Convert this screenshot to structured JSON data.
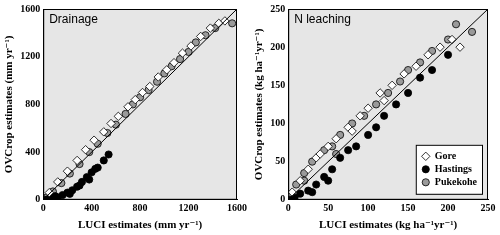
{
  "chart_data": [
    {
      "type": "scatter",
      "title": "Drainage",
      "xlabel": "LUCI estimates (mm yr⁻¹)",
      "ylabel": "OVCrop estimates (mm yr⁻¹)",
      "xlim": [
        0,
        1600
      ],
      "ylim": [
        0,
        1600
      ],
      "xticks": [
        0,
        400,
        800,
        1200,
        1600
      ],
      "yticks": [
        0,
        400,
        800,
        1200,
        1600
      ],
      "grid": false,
      "line_1to1": {
        "x": [
          0,
          1600
        ],
        "y": [
          0,
          1600
        ]
      },
      "series": [
        {
          "name": "Gore",
          "color": "#ffffff",
          "marker": "diamond",
          "x": [
            50,
            120,
            200,
            280,
            350,
            420,
            500,
            560,
            620,
            700,
            760,
            820,
            880,
            950,
            1020,
            1080,
            1150,
            1220,
            1300,
            1380,
            1450,
            1500
          ],
          "y": [
            60,
            150,
            240,
            330,
            420,
            500,
            570,
            640,
            700,
            780,
            840,
            900,
            950,
            1030,
            1090,
            1150,
            1230,
            1290,
            1370,
            1440,
            1480,
            1500
          ]
        },
        {
          "name": "Hastings",
          "color": "#000000",
          "marker": "circle",
          "x": [
            10,
            40,
            80,
            120,
            160,
            200,
            240,
            280,
            320,
            360,
            400,
            450,
            500,
            540,
            100,
            60,
            220,
            300,
            380,
            430
          ],
          "y": [
            0,
            5,
            10,
            20,
            40,
            60,
            80,
            110,
            150,
            190,
            230,
            270,
            330,
            380,
            30,
            15,
            50,
            120,
            170,
            260
          ]
        },
        {
          "name": "Pukekohe",
          "color": "#9a9a9a",
          "marker": "circle",
          "x": [
            30,
            80,
            150,
            220,
            300,
            380,
            450,
            530,
            600,
            680,
            740,
            800,
            870,
            940,
            1000,
            1060,
            1130,
            1200,
            1260,
            1340,
            1420,
            1560
          ],
          "y": [
            20,
            70,
            140,
            220,
            300,
            400,
            470,
            560,
            630,
            720,
            800,
            860,
            920,
            990,
            1060,
            1120,
            1180,
            1240,
            1320,
            1380,
            1440,
            1480
          ]
        }
      ]
    },
    {
      "type": "scatter",
      "title": "N leaching",
      "xlabel": "LUCI estimates (kg ha⁻¹yr⁻¹)",
      "ylabel": "OVCrop estimates (kg ha⁻¹yr⁻¹)",
      "xlim": [
        0,
        250
      ],
      "ylim": [
        0,
        250
      ],
      "xticks": [
        0,
        50,
        100,
        150,
        200,
        250
      ],
      "yticks": [
        0,
        50,
        100,
        150,
        200,
        250
      ],
      "grid": false,
      "legend": "lower right",
      "line_1to1": {
        "x": [
          0,
          250
        ],
        "y": [
          0,
          250
        ]
      },
      "series": [
        {
          "name": "Gore",
          "color": "#ffffff",
          "marker": "diamond",
          "x": [
            5,
            15,
            25,
            35,
            50,
            60,
            75,
            90,
            100,
            115,
            130,
            145,
            160,
            175,
            190,
            205,
            215,
            120,
            80,
            40
          ],
          "y": [
            10,
            25,
            40,
            55,
            70,
            80,
            95,
            110,
            120,
            140,
            150,
            165,
            175,
            190,
            200,
            210,
            200,
            130,
            90,
            60
          ]
        },
        {
          "name": "Hastings",
          "color": "#000000",
          "marker": "circle",
          "x": [
            2,
            8,
            15,
            25,
            35,
            45,
            55,
            65,
            75,
            85,
            100,
            110,
            120,
            135,
            150,
            165,
            180,
            200,
            30,
            50
          ],
          "y": [
            0,
            3,
            8,
            12,
            20,
            30,
            40,
            55,
            65,
            70,
            85,
            95,
            110,
            125,
            140,
            160,
            170,
            190,
            10,
            25
          ]
        },
        {
          "name": "Pukekohe",
          "color": "#9a9a9a",
          "marker": "circle",
          "x": [
            3,
            10,
            20,
            30,
            45,
            55,
            65,
            80,
            95,
            110,
            125,
            140,
            150,
            165,
            180,
            200,
            210,
            230,
            20,
            60
          ],
          "y": [
            5,
            20,
            35,
            50,
            65,
            70,
            85,
            100,
            110,
            125,
            140,
            155,
            170,
            180,
            195,
            210,
            230,
            220,
            25,
            60
          ]
        }
      ]
    }
  ]
}
